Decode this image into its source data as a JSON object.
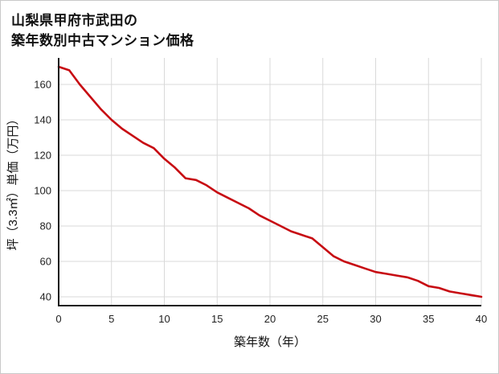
{
  "title": {
    "line1": "山梨県甲府市武田の",
    "line2": "築年数別中古マンション価格"
  },
  "chart_data": {
    "type": "line",
    "title": "山梨県甲府市武田の築年数別中古マンション価格",
    "xlabel": "築年数（年）",
    "ylabel": "坪（3.3㎡）単価（万円）",
    "x": [
      0,
      1,
      2,
      3,
      4,
      5,
      6,
      7,
      8,
      9,
      10,
      11,
      12,
      13,
      14,
      15,
      16,
      17,
      18,
      19,
      20,
      21,
      22,
      23,
      24,
      25,
      26,
      27,
      28,
      29,
      30,
      31,
      32,
      33,
      34,
      35,
      36,
      37,
      38,
      39,
      40
    ],
    "values": [
      170,
      168,
      160,
      153,
      146,
      140,
      135,
      131,
      127,
      124,
      118,
      113,
      107,
      106,
      103,
      99,
      96,
      93,
      90,
      86,
      83,
      80,
      77,
      75,
      73,
      68,
      63,
      60,
      58,
      56,
      54,
      53,
      52,
      51,
      49,
      46,
      45,
      43,
      42,
      41,
      40
    ],
    "xlim": [
      0,
      40
    ],
    "ylim": [
      35,
      175
    ],
    "x_ticks": [
      0,
      5,
      10,
      15,
      20,
      25,
      30,
      35,
      40
    ],
    "y_ticks": [
      40,
      60,
      80,
      100,
      120,
      140,
      160
    ],
    "grid": true,
    "legend": "none"
  },
  "colors": {
    "line": "#c70b12",
    "grid": "#d9d9d9",
    "axis": "#1a1a1a",
    "tick_text": "#222222",
    "label_text": "#111111",
    "background": "#ffffff",
    "border": "#c9c9c9"
  }
}
